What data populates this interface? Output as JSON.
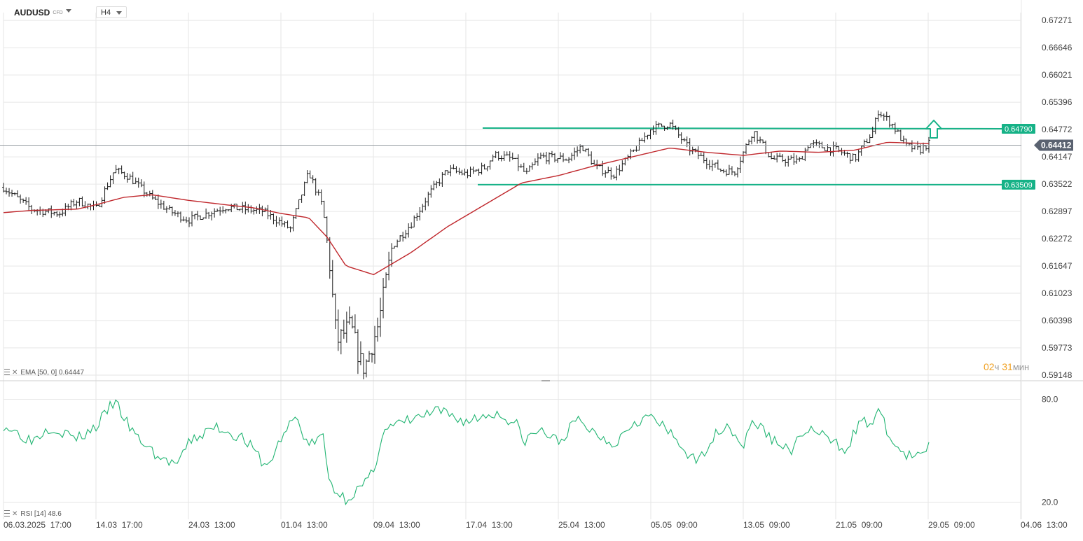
{
  "toolbar": {
    "symbol": "AUDUSD",
    "symbol_tag": "CFD",
    "timeframe": "H4"
  },
  "indicators": {
    "ema_label": "EMA",
    "ema_params": "[50, 0]",
    "ema_value": "0.64447",
    "rsi_label": "RSI",
    "rsi_params": "[14]",
    "rsi_value": "48.6"
  },
  "timer": {
    "hours": "02",
    "hours_unit": "ч",
    "minutes": "31",
    "minutes_unit": "мин"
  },
  "colors": {
    "candle": "#1a1a1a",
    "ema": "#c0282d",
    "rsi": "#22b573",
    "levels": "#16b287",
    "grid": "#e6e6e6",
    "current_price_bg": "#5a6270"
  },
  "chart_data": [
    {
      "type": "candlestick",
      "symbol": "AUDUSD",
      "timeframe": "H4",
      "y_ticks": [
        "0.67271",
        "0.66646",
        "0.66021",
        "0.65396",
        "0.64772",
        "0.64147",
        "0.63522",
        "0.62897",
        "0.62272",
        "0.61647",
        "0.61023",
        "0.60398",
        "0.59773",
        "0.59148"
      ],
      "ylim": [
        0.5902,
        0.6745
      ],
      "x_ticks": [
        "06.03.2025  17:00",
        "14.03  17:00",
        "24.03  13:00",
        "01.04  13:00",
        "09.04  13:00",
        "17.04  13:00",
        "25.04  13:00",
        "05.05  09:00",
        "13.05  09:00",
        "21.05  09:00",
        "29.05  09:00",
        "04.06  13:00"
      ],
      "current_price": "0.64412",
      "levels": [
        {
          "label": "0.64790",
          "value": 0.6479
        },
        {
          "label": "0.63509",
          "value": 0.63509
        }
      ],
      "ema_anchors": [
        [
          0,
          0.6287
        ],
        [
          0.03,
          0.6292
        ],
        [
          0.08,
          0.6295
        ],
        [
          0.1,
          0.6305
        ],
        [
          0.13,
          0.6322
        ],
        [
          0.16,
          0.6328
        ],
        [
          0.2,
          0.6315
        ],
        [
          0.24,
          0.6305
        ],
        [
          0.27,
          0.6298
        ],
        [
          0.3,
          0.6285
        ],
        [
          0.33,
          0.6275
        ],
        [
          0.35,
          0.623
        ],
        [
          0.37,
          0.6165
        ],
        [
          0.4,
          0.6145
        ],
        [
          0.44,
          0.6195
        ],
        [
          0.48,
          0.6255
        ],
        [
          0.52,
          0.6305
        ],
        [
          0.56,
          0.6355
        ],
        [
          0.6,
          0.6372
        ],
        [
          0.64,
          0.6395
        ],
        [
          0.68,
          0.6415
        ],
        [
          0.72,
          0.6435
        ],
        [
          0.76,
          0.6425
        ],
        [
          0.8,
          0.6418
        ],
        [
          0.84,
          0.6428
        ],
        [
          0.88,
          0.6425
        ],
        [
          0.92,
          0.643
        ],
        [
          0.955,
          0.6448
        ],
        [
          1.0,
          0.6445
        ]
      ]
    },
    {
      "type": "line",
      "name": "RSI",
      "period": 14,
      "value": 48.6,
      "y_ticks": [
        "80.0",
        "20.0"
      ],
      "ylim": [
        10,
        90
      ]
    }
  ]
}
